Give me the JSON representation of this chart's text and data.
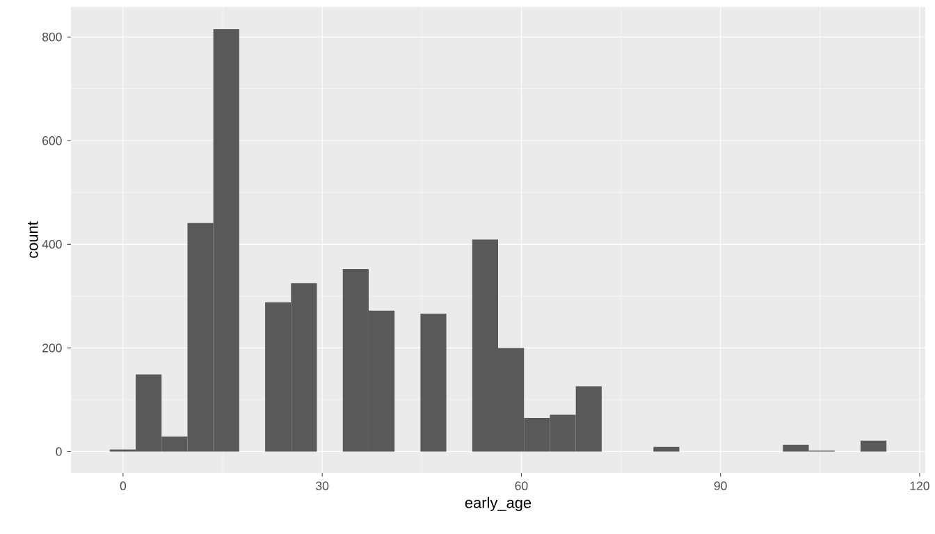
{
  "chart_data": {
    "type": "histogram",
    "xlabel": "early_age",
    "ylabel": "count",
    "bins": [
      -2,
      1.9,
      5.8,
      9.7,
      13.6,
      17.5,
      21.4,
      25.3,
      29.2,
      33.1,
      37,
      40.9,
      44.8,
      48.7,
      52.6,
      56.5,
      60.4,
      64.3,
      68.2,
      72.1,
      76,
      79.9,
      83.8,
      87.7,
      91.6,
      95.5,
      99.4,
      103.3,
      107.2,
      111.1,
      115
    ],
    "values": [
      4,
      149,
      29,
      441,
      815,
      0,
      288,
      325,
      0,
      352,
      272,
      0,
      266,
      0,
      409,
      200,
      65,
      71,
      126,
      0,
      0,
      9,
      0,
      0,
      0,
      0,
      13,
      2,
      0,
      21
    ],
    "color": "#595959",
    "xlim": [
      -7.85,
      120.85
    ],
    "ylim": [
      -41,
      858
    ],
    "xticks": [
      0,
      30,
      60,
      90,
      120
    ],
    "yticks": [
      0,
      200,
      400,
      600,
      800
    ],
    "grid": true
  }
}
